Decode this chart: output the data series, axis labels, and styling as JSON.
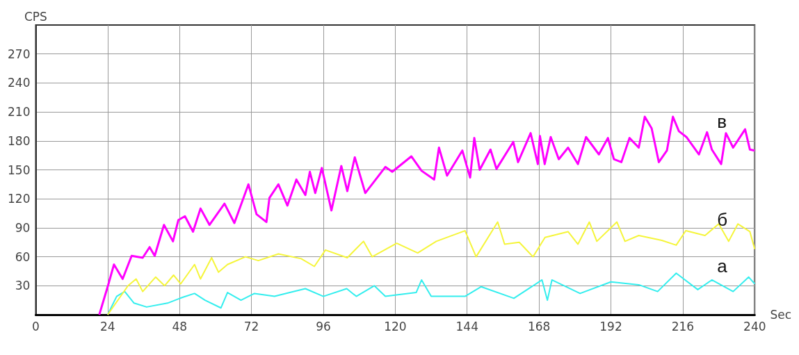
{
  "chart_data": {
    "type": "line",
    "xlabel": "Sec",
    "ylabel": "CPS",
    "xlim": [
      0,
      240
    ],
    "xticks": [
      0,
      24,
      48,
      72,
      96,
      120,
      144,
      168,
      192,
      216,
      240
    ],
    "ylim": [
      0,
      300
    ],
    "yticks": [
      30,
      60,
      90,
      120,
      150,
      180,
      210,
      240,
      270
    ],
    "grid": true,
    "marker": "none",
    "line_style": "solid",
    "series": [
      {
        "name": "а",
        "color": "#33eeee",
        "x": [
          24,
          27,
          29.7,
          32.8,
          37,
          44,
          49,
          53,
          56.5,
          61.8,
          64,
          68.5,
          73,
          79.7,
          84.8,
          90,
          96,
          103.8,
          107,
          113,
          116.7,
          127,
          128.8,
          132,
          143.3,
          148.7,
          159.6,
          169,
          170.8,
          172.3,
          181.7,
          192,
          201.3,
          207.6,
          213.8,
          221,
          225.7,
          232.8,
          238,
          240
        ],
        "values": [
          0,
          19,
          24,
          12,
          8,
          12,
          18,
          22,
          15,
          7,
          23,
          15,
          22,
          19,
          23,
          27,
          19,
          27,
          19,
          30,
          19,
          23,
          36,
          19,
          19,
          29,
          17,
          36,
          15,
          36,
          22,
          34,
          31,
          24,
          43,
          26,
          36,
          24,
          39,
          32
        ]
      },
      {
        "name": "б",
        "color": "#f5f53a",
        "x": [
          24,
          30.8,
          33.5,
          35.7,
          40,
          43,
          46,
          48.4,
          53,
          55,
          58.7,
          61,
          64,
          70,
          74.3,
          81,
          88.6,
          93,
          96.7,
          104,
          109.4,
          112.3,
          120.5,
          127.5,
          133.7,
          143.3,
          147,
          154.2,
          156.5,
          161.4,
          166,
          170,
          177.7,
          181,
          184.8,
          187.3,
          194,
          196.7,
          201.3,
          209,
          213.8,
          217,
          223.4,
          228,
          231.3,
          234.4,
          238.4,
          240
        ],
        "values": [
          0,
          30,
          37,
          24,
          39,
          30,
          41,
          32,
          52,
          37,
          59,
          44,
          52,
          60,
          56,
          63,
          58,
          50,
          67,
          59,
          76,
          60,
          74,
          64,
          76,
          87,
          60,
          96,
          73,
          75,
          60,
          80,
          86,
          73,
          96,
          76,
          96,
          76,
          82,
          77,
          72,
          87,
          82,
          94,
          76,
          94,
          86,
          68
        ]
      },
      {
        "name": "в",
        "color": "#ff00ff",
        "x": [
          21.2,
          24.1,
          26.1,
          29,
          32,
          35.7,
          38,
          39.7,
          42.8,
          45.8,
          47.6,
          49.8,
          52.5,
          55,
          58,
          63,
          66.3,
          71,
          73.7,
          77,
          78,
          81,
          84,
          87,
          90,
          91.5,
          93.3,
          95.5,
          98.7,
          102,
          104,
          106.5,
          110,
          113,
          116.7,
          119,
          125.4,
          128.8,
          133,
          134.6,
          137.3,
          142.4,
          145,
          146.4,
          148.2,
          151.8,
          153.8,
          159.4,
          161,
          165.2,
          167.6,
          168.3,
          169.9,
          171.9,
          174.6,
          177.7,
          181,
          183.7,
          188,
          191,
          193,
          195.5,
          198.2,
          201.3,
          203.3,
          205.6,
          208,
          210.7,
          212.7,
          214.7,
          217.2,
          221.4,
          224.1,
          225.7,
          228.8,
          230.4,
          232.8,
          236.8,
          238.4,
          240
        ],
        "values": [
          0,
          30,
          52,
          37,
          61,
          59,
          70,
          61,
          93,
          76,
          98,
          102,
          86,
          110,
          93,
          115,
          95,
          135,
          104,
          96,
          121,
          135,
          113,
          140,
          124,
          148,
          126,
          152,
          108,
          154,
          128,
          163,
          126,
          138,
          153,
          148,
          164,
          149,
          140,
          173,
          144,
          170,
          142,
          183,
          150,
          171,
          151,
          179,
          158,
          188,
          156,
          185,
          156,
          184,
          161,
          173,
          156,
          184,
          166,
          183,
          161,
          158,
          183,
          173,
          205,
          193,
          158,
          170,
          205,
          190,
          184,
          166,
          189,
          171,
          156,
          188,
          173,
          192,
          171,
          170
        ]
      }
    ]
  }
}
